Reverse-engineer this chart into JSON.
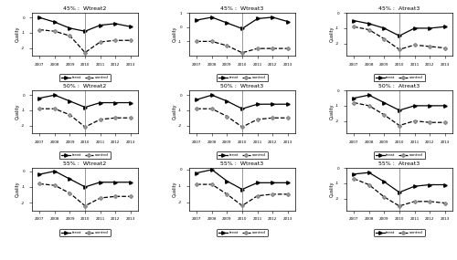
{
  "years": [
    2007,
    2008,
    2009,
    2010,
    2011,
    2012,
    2013
  ],
  "vline_x": 2010,
  "rows": [
    "45%",
    "50%",
    "55%"
  ],
  "cols": [
    "Wtreat2",
    "Wtreat3",
    "Atreat3"
  ],
  "series": {
    "45_Wtreat2": {
      "treat": [
        0.0,
        -0.3,
        -0.7,
        -0.9,
        -0.5,
        -0.4,
        -0.6
      ],
      "control": [
        -0.8,
        -0.9,
        -1.2,
        -2.3,
        -1.6,
        -1.5,
        -1.5
      ]
    },
    "45_Wtreat3": {
      "treat": [
        0.5,
        0.7,
        0.3,
        -0.1,
        0.6,
        0.7,
        0.4
      ],
      "control": [
        -1.0,
        -1.0,
        -1.3,
        -1.8,
        -1.5,
        -1.5,
        -1.5
      ]
    },
    "45_Atreat3": {
      "treat": [
        -0.5,
        -0.7,
        -1.0,
        -1.5,
        -1.0,
        -1.0,
        -0.9
      ],
      "control": [
        -0.9,
        -1.1,
        -1.7,
        -2.4,
        -2.1,
        -2.2,
        -2.3
      ]
    },
    "50_Wtreat2": {
      "treat": [
        -0.2,
        0.0,
        -0.4,
        -0.8,
        -0.5,
        -0.5,
        -0.5
      ],
      "control": [
        -0.9,
        -0.9,
        -1.3,
        -2.1,
        -1.6,
        -1.5,
        -1.5
      ]
    },
    "50_Wtreat3": {
      "treat": [
        -0.3,
        0.0,
        -0.4,
        -0.9,
        -0.6,
        -0.6,
        -0.6
      ],
      "control": [
        -0.9,
        -0.9,
        -1.4,
        -2.1,
        -1.6,
        -1.5,
        -1.5
      ]
    },
    "50_Atreat3": {
      "treat": [
        -0.5,
        -0.3,
        -0.8,
        -1.3,
        -1.0,
        -1.0,
        -1.0
      ],
      "control": [
        -0.8,
        -1.0,
        -1.6,
        -2.3,
        -2.0,
        -2.1,
        -2.1
      ]
    },
    "55_Wtreat2": {
      "treat": [
        -0.2,
        0.0,
        -0.5,
        -1.0,
        -0.7,
        -0.7,
        -0.7
      ],
      "control": [
        -0.8,
        -0.9,
        -1.4,
        -2.2,
        -1.7,
        -1.6,
        -1.6
      ]
    },
    "55_Wtreat3": {
      "treat": [
        -0.2,
        0.0,
        -0.7,
        -1.2,
        -0.8,
        -0.8,
        -0.8
      ],
      "control": [
        -0.9,
        -0.9,
        -1.5,
        -2.2,
        -1.6,
        -1.5,
        -1.5
      ]
    },
    "55_Atreat3": {
      "treat": [
        -0.4,
        -0.3,
        -0.9,
        -1.6,
        -1.2,
        -1.1,
        -1.1
      ],
      "control": [
        -0.7,
        -1.1,
        -1.9,
        -2.5,
        -2.2,
        -2.2,
        -2.3
      ]
    }
  },
  "ylims": {
    "45_Wtreat2": [
      -2.5,
      0.3
    ],
    "45_Wtreat3": [
      -2.0,
      1.0
    ],
    "45_Atreat3": [
      -2.8,
      0.0
    ],
    "50_Wtreat2": [
      -2.5,
      0.3
    ],
    "50_Wtreat3": [
      -2.5,
      0.3
    ],
    "50_Atreat3": [
      -2.8,
      0.0
    ],
    "55_Wtreat2": [
      -2.5,
      0.2
    ],
    "55_Wtreat3": [
      -2.5,
      0.1
    ],
    "55_Atreat3": [
      -2.8,
      0.0
    ]
  },
  "yticks": {
    "45_Wtreat2": [
      0,
      -1,
      -2
    ],
    "45_Wtreat3": [
      1,
      0,
      -1
    ],
    "45_Atreat3": [
      0,
      -1,
      -2
    ],
    "50_Wtreat2": [
      0,
      -1,
      -2
    ],
    "50_Wtreat3": [
      0,
      -1,
      -2
    ],
    "50_Atreat3": [
      0,
      -1,
      -2
    ],
    "55_Wtreat2": [
      0,
      -1,
      -2
    ],
    "55_Wtreat3": [
      0,
      -1,
      -2
    ],
    "55_Atreat3": [
      0,
      -1,
      -2
    ]
  },
  "figure_bgcolor": "#ffffff",
  "subplot_bgcolor": "#ffffff"
}
